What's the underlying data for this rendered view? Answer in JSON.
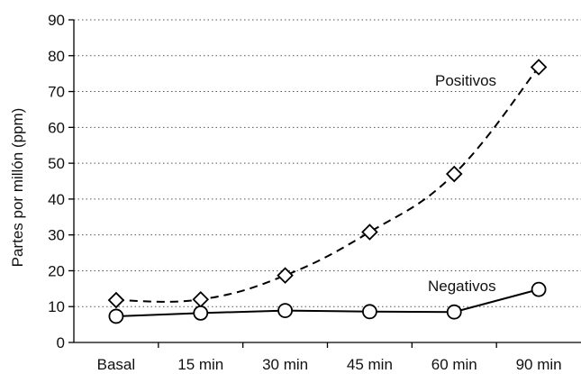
{
  "chart_data": {
    "type": "line",
    "title": "",
    "xlabel": "",
    "ylabel": "Partes por millón (ppm)",
    "categories": [
      "Basal",
      "15 min",
      "30 min",
      "45 min",
      "60 min",
      "90 min"
    ],
    "ylim": [
      0,
      90
    ],
    "yticks": [
      0,
      10,
      20,
      30,
      40,
      50,
      60,
      70,
      80,
      90
    ],
    "grid": "horizontal dotted",
    "series": [
      {
        "name": "Positivos",
        "marker": "diamond",
        "line_style": "dashed",
        "smooth": true,
        "values": [
          11.8,
          12.0,
          18.7,
          30.8,
          47.0,
          76.8
        ]
      },
      {
        "name": "Negativos",
        "marker": "circle",
        "line_style": "solid",
        "smooth": false,
        "values": [
          7.3,
          8.2,
          8.9,
          8.6,
          8.5,
          14.8
        ]
      }
    ],
    "colors": {
      "line": "#000000",
      "marker_fill": "#ffffff",
      "grid": "#555555"
    }
  }
}
